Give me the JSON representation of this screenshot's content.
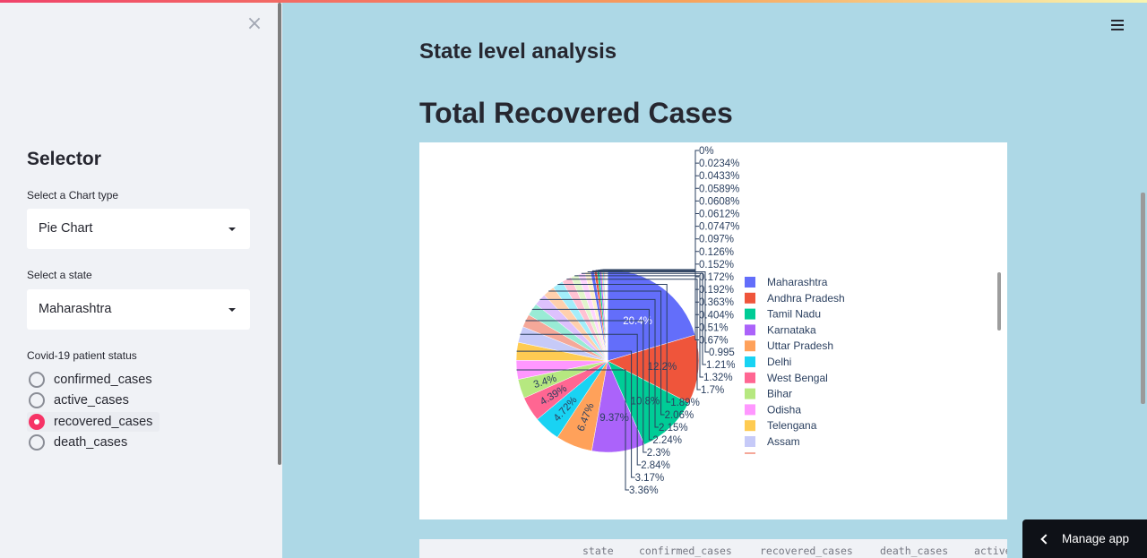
{
  "sidebar": {
    "close_label": "×",
    "title": "Selector",
    "chart_type_label": "Select a Chart type",
    "chart_type_value": "Pie Chart",
    "state_label": "Select a state",
    "state_value": "Maharashtra",
    "status_label": "Covid-19 patient status",
    "status_options": [
      "confirmed_cases",
      "active_cases",
      "recovered_cases",
      "death_cases"
    ],
    "status_selected": "recovered_cases"
  },
  "main": {
    "subheader": "State level analysis",
    "header": "Total Recovered Cases",
    "table_columns": [
      "state",
      "confirmed_cases",
      "recovered_cases",
      "death_cases",
      "active_cases"
    ]
  },
  "manage_app_label": "Manage app",
  "colors": {
    "accent": "#f63366",
    "main_bg": "#add8e6",
    "sidebar_bg": "#f0f2f6"
  },
  "chart_data": {
    "type": "pie",
    "series": [
      {
        "label": "Maharashtra",
        "value": 20.4,
        "color": "#636efa"
      },
      {
        "label": "Andhra Pradesh",
        "value": 12.2,
        "color": "#ef553b"
      },
      {
        "label": "Tamil Nadu",
        "value": 10.8,
        "color": "#00cc96"
      },
      {
        "label": "Karnataka",
        "value": 9.37,
        "color": "#ab63fa"
      },
      {
        "label": "Uttar Pradesh",
        "value": 6.47,
        "color": "#ffa15a"
      },
      {
        "label": "Delhi",
        "value": 4.72,
        "color": "#19d3f3"
      },
      {
        "label": "West Bengal",
        "value": 4.39,
        "color": "#ff6692"
      },
      {
        "label": "Bihar",
        "value": 3.4,
        "color": "#b6e880"
      },
      {
        "label": "Odisha",
        "value": 3.36,
        "color": "#ff97ff"
      },
      {
        "label": "Telengana",
        "value": 3.17,
        "color": "#fecb52"
      },
      {
        "label": "Assam",
        "value": 2.84,
        "color": "#c6caf8"
      },
      {
        "label": "",
        "value": 2.3,
        "color": "#f5a899"
      },
      {
        "label": "",
        "value": 2.24,
        "color": "#99ebd5"
      },
      {
        "label": "",
        "value": 2.15,
        "color": "#ddc1fd"
      },
      {
        "label": "",
        "value": 2.06,
        "color": "#ffd0ad"
      },
      {
        "label": "",
        "value": 1.89,
        "color": "#a3edfa"
      },
      {
        "label": "",
        "value": 1.7,
        "color": "#ffc2d3"
      },
      {
        "label": "",
        "value": 1.32,
        "color": "#e2f6cc"
      },
      {
        "label": "",
        "value": 1.21,
        "color": "#ffd5ff"
      },
      {
        "label": "",
        "value": 0.995,
        "color": "#fff0cc"
      },
      {
        "label": "",
        "value": 0.67,
        "color": "#636efa"
      },
      {
        "label": "",
        "value": 0.51,
        "color": "#ef553b"
      },
      {
        "label": "",
        "value": 0.404,
        "color": "#00cc96"
      },
      {
        "label": "",
        "value": 0.363,
        "color": "#ab63fa"
      },
      {
        "label": "",
        "value": 0.192,
        "color": "#ffa15a"
      },
      {
        "label": "",
        "value": 0.172,
        "color": "#19d3f3"
      },
      {
        "label": "",
        "value": 0.152,
        "color": "#ff6692"
      },
      {
        "label": "",
        "value": 0.126,
        "color": "#b6e880"
      },
      {
        "label": "",
        "value": 0.097,
        "color": "#ff97ff"
      },
      {
        "label": "",
        "value": 0.0747,
        "color": "#fecb52"
      },
      {
        "label": "",
        "value": 0.0612,
        "color": "#636efa"
      },
      {
        "label": "",
        "value": 0.0608,
        "color": "#ef553b"
      },
      {
        "label": "",
        "value": 0.0589,
        "color": "#00cc96"
      },
      {
        "label": "",
        "value": 0.0433,
        "color": "#ab63fa"
      },
      {
        "label": "",
        "value": 0.0234,
        "color": "#ffa15a"
      },
      {
        "label": "",
        "value": 0,
        "color": "#19d3f3"
      }
    ],
    "percent_labels": [
      "20.4%",
      "12.2%",
      "10.8%",
      "9.37%",
      "6.47%",
      "4.72%",
      "4.39%",
      "3.4%",
      "3.36%",
      "3.17%",
      "2.84%",
      "2.3%",
      "2.24%",
      "2.15%",
      "2.06%",
      "1.89%",
      "1.7%",
      "1.32%",
      "1.21%",
      "0.995%",
      "0.67%",
      "0.51%",
      "0.404%",
      "0.363%",
      "0.192%",
      "0.172%",
      "0.152%",
      "0.126%",
      "0.097%",
      "0.0747%",
      "0.0612%",
      "0.0608%",
      "0.0589%",
      "0.0433%",
      "0.0234%",
      "0%"
    ],
    "legend_visible": [
      "Maharashtra",
      "Andhra Pradesh",
      "Tamil Nadu",
      "Karnataka",
      "Uttar Pradesh",
      "Delhi",
      "West Bengal",
      "Bihar",
      "Odisha",
      "Telengana",
      "Assam"
    ],
    "legend_placement": "right",
    "title": ""
  }
}
